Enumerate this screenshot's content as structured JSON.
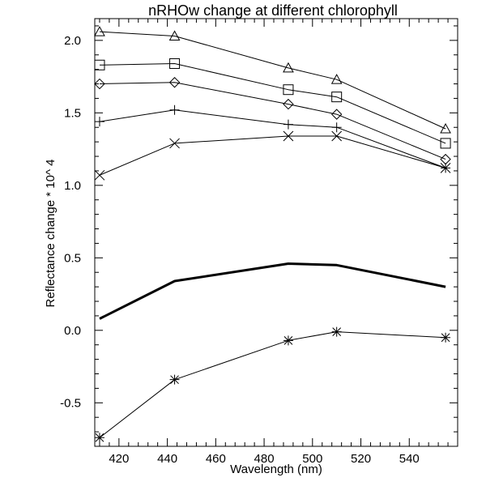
{
  "chart_data": {
    "type": "line",
    "title": "nRHOw change at different chlorophyll",
    "xlabel": "Wavelength (nm)",
    "ylabel": "Reflectance change * 10^ 4",
    "xlim": [
      410,
      560
    ],
    "ylim": [
      -0.8,
      2.15
    ],
    "xticks": [
      420,
      440,
      460,
      480,
      500,
      520,
      540
    ],
    "xtick_labels": [
      "420",
      "440",
      "460",
      "480",
      "500",
      "520",
      "540"
    ],
    "yticks": [
      -0.5,
      0.0,
      0.5,
      1.0,
      1.5,
      2.0
    ],
    "ytick_labels": [
      "-0.5",
      "0.0",
      "0.5",
      "1.0",
      "1.5",
      "2.0"
    ],
    "grid": false,
    "x": [
      412,
      443,
      490,
      510,
      555
    ],
    "series": [
      {
        "marker": "triangle",
        "values": [
          2.06,
          2.03,
          1.81,
          1.73,
          1.39
        ]
      },
      {
        "marker": "square",
        "values": [
          1.83,
          1.84,
          1.66,
          1.61,
          1.29
        ]
      },
      {
        "marker": "diamond",
        "values": [
          1.7,
          1.71,
          1.56,
          1.49,
          1.18
        ]
      },
      {
        "marker": "plus",
        "values": [
          1.44,
          1.52,
          1.42,
          1.4,
          1.12
        ]
      },
      {
        "marker": "x",
        "values": [
          1.07,
          1.29,
          1.34,
          1.34,
          1.12
        ]
      },
      {
        "marker": "none",
        "thick": true,
        "values": [
          0.08,
          0.34,
          0.46,
          0.45,
          0.3
        ]
      },
      {
        "marker": "asterisk",
        "values": [
          -0.74,
          -0.34,
          -0.07,
          -0.01,
          -0.05
        ]
      }
    ]
  }
}
